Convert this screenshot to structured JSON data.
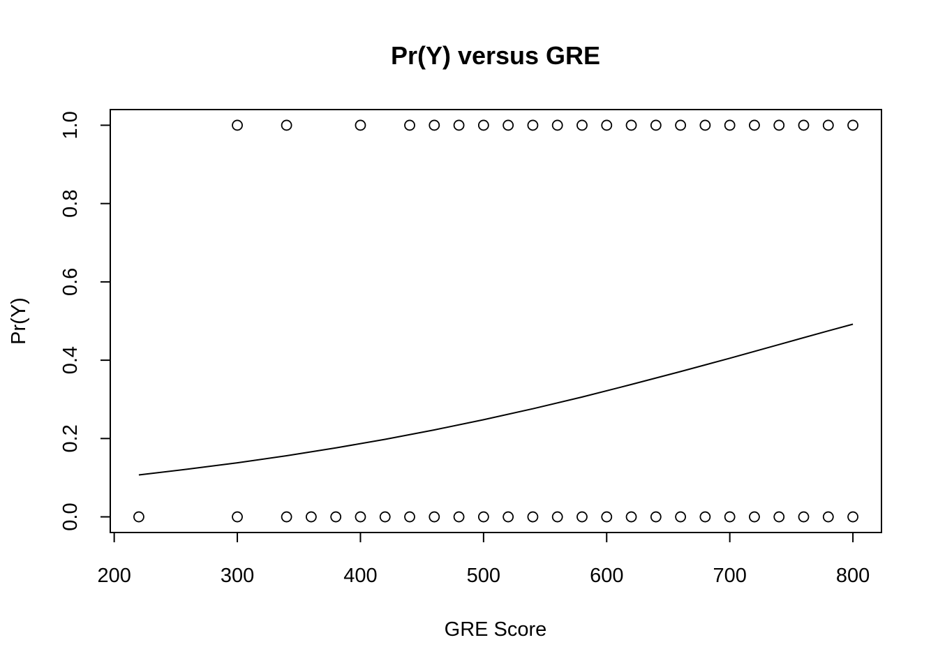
{
  "chart_data": {
    "type": "scatter",
    "title": "Pr(Y) versus GRE",
    "xlabel": "GRE Score",
    "ylabel": "Pr(Y)",
    "xlim": [
      196.8,
      823.2
    ],
    "ylim": [
      -0.04,
      1.04
    ],
    "x_ticks": [
      200,
      300,
      400,
      500,
      600,
      700,
      800
    ],
    "x_tick_labels": [
      "200",
      "300",
      "400",
      "500",
      "600",
      "700",
      "800"
    ],
    "y_ticks": [
      0.0,
      0.2,
      0.4,
      0.6,
      0.8,
      1.0
    ],
    "y_tick_labels": [
      "0.0",
      "0.2",
      "0.4",
      "0.6",
      "0.8",
      "1.0"
    ],
    "grid": false,
    "legend": "none",
    "series": [
      {
        "kind": "points",
        "marker": "open-circle",
        "color": "#000000",
        "points": [
          {
            "x": 300,
            "y": 1
          },
          {
            "x": 340,
            "y": 1
          },
          {
            "x": 400,
            "y": 1
          },
          {
            "x": 440,
            "y": 1
          },
          {
            "x": 460,
            "y": 1
          },
          {
            "x": 480,
            "y": 1
          },
          {
            "x": 500,
            "y": 1
          },
          {
            "x": 520,
            "y": 1
          },
          {
            "x": 540,
            "y": 1
          },
          {
            "x": 560,
            "y": 1
          },
          {
            "x": 580,
            "y": 1
          },
          {
            "x": 600,
            "y": 1
          },
          {
            "x": 620,
            "y": 1
          },
          {
            "x": 640,
            "y": 1
          },
          {
            "x": 660,
            "y": 1
          },
          {
            "x": 680,
            "y": 1
          },
          {
            "x": 700,
            "y": 1
          },
          {
            "x": 720,
            "y": 1
          },
          {
            "x": 740,
            "y": 1
          },
          {
            "x": 760,
            "y": 1
          },
          {
            "x": 780,
            "y": 1
          },
          {
            "x": 800,
            "y": 1
          },
          {
            "x": 220,
            "y": 0
          },
          {
            "x": 300,
            "y": 0
          },
          {
            "x": 340,
            "y": 0
          },
          {
            "x": 360,
            "y": 0
          },
          {
            "x": 380,
            "y": 0
          },
          {
            "x": 400,
            "y": 0
          },
          {
            "x": 420,
            "y": 0
          },
          {
            "x": 440,
            "y": 0
          },
          {
            "x": 460,
            "y": 0
          },
          {
            "x": 480,
            "y": 0
          },
          {
            "x": 500,
            "y": 0
          },
          {
            "x": 520,
            "y": 0
          },
          {
            "x": 540,
            "y": 0
          },
          {
            "x": 560,
            "y": 0
          },
          {
            "x": 580,
            "y": 0
          },
          {
            "x": 600,
            "y": 0
          },
          {
            "x": 620,
            "y": 0
          },
          {
            "x": 640,
            "y": 0
          },
          {
            "x": 660,
            "y": 0
          },
          {
            "x": 680,
            "y": 0
          },
          {
            "x": 700,
            "y": 0
          },
          {
            "x": 720,
            "y": 0
          },
          {
            "x": 740,
            "y": 0
          },
          {
            "x": 760,
            "y": 0
          },
          {
            "x": 780,
            "y": 0
          },
          {
            "x": 800,
            "y": 0
          }
        ]
      },
      {
        "kind": "line",
        "color": "#000000",
        "x": [
          220,
          260,
          300,
          340,
          380,
          420,
          460,
          500,
          540,
          580,
          620,
          660,
          700,
          740,
          780,
          800
        ],
        "y": [
          0.107,
          0.122,
          0.138,
          0.156,
          0.176,
          0.198,
          0.222,
          0.248,
          0.276,
          0.306,
          0.338,
          0.371,
          0.405,
          0.44,
          0.475,
          0.492
        ]
      }
    ]
  }
}
